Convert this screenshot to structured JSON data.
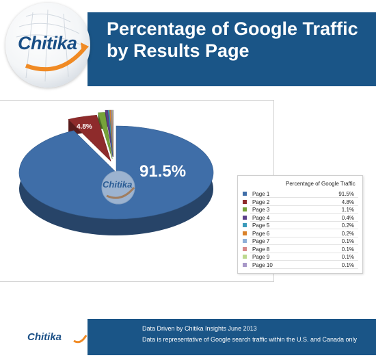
{
  "brand": {
    "logo_text": "Chitika",
    "watermark_text": "Chitika",
    "footer_logo_text": "Chitika"
  },
  "header": {
    "title_line1": "Percentage of Google Traffic",
    "title_line2": "by Results Page"
  },
  "chart_data": {
    "type": "pie",
    "style": "3d-exploded",
    "title": "",
    "legend": {
      "title": "Percentage of Google Traffic",
      "placement": "right"
    },
    "categories": [
      "Page 1",
      "Page 2",
      "Page 3",
      "Page 4",
      "Page 5",
      "Page 6",
      "Page 7",
      "Page 8",
      "Page 9",
      "Page 10"
    ],
    "values": [
      91.5,
      4.8,
      1.1,
      0.4,
      0.2,
      0.2,
      0.1,
      0.1,
      0.1,
      0.1
    ],
    "value_labels": [
      "91.5%",
      "4.8%",
      "1.1%",
      "0.4%",
      "0.2%",
      "0.2%",
      "0.1%",
      "0.1%",
      "0.1%",
      "0.1%"
    ],
    "colors": [
      "#3f6ea8",
      "#8e2b2b",
      "#76a33a",
      "#5b3f8a",
      "#3a9aba",
      "#d9822b",
      "#8fb0d8",
      "#d88888",
      "#bcd88e",
      "#a898c8"
    ]
  },
  "footer": {
    "line1": "Data Driven by Chitika Insights June 2013",
    "line2": "Data is representative of Google search traffic within the U.S. and Canada only"
  }
}
